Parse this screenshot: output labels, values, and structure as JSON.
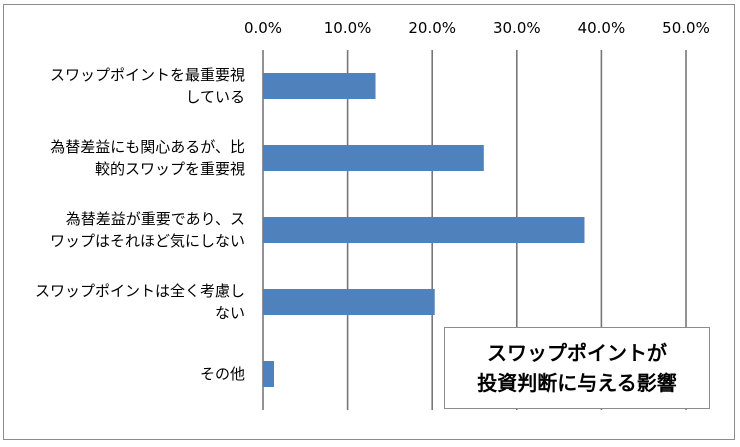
{
  "chart_data": {
    "type": "bar",
    "orientation": "horizontal",
    "title_lines": [
      "スワップポイントが",
      "投資判断に与える影響"
    ],
    "xlim": [
      0,
      50
    ],
    "x_ticks": [
      "0.0%",
      "10.0%",
      "20.0%",
      "30.0%",
      "40.0%",
      "50.0%"
    ],
    "x_tick_values": [
      0,
      10,
      20,
      30,
      40,
      50
    ],
    "categories": [
      [
        "スワップポイントを最重要視",
        "している"
      ],
      [
        "為替差益にも関心あるが、比",
        "較的スワップを重要視"
      ],
      [
        "為替差益が重要であり、ス",
        "ワップはそれほど気にしない"
      ],
      [
        "スワップポイントは全く考慮し",
        "ない"
      ],
      [
        "その他"
      ]
    ],
    "values": [
      13.3,
      26.1,
      38.0,
      20.3,
      1.3
    ],
    "bar_color": "#4f81bd",
    "grid": true,
    "legend": "none"
  }
}
